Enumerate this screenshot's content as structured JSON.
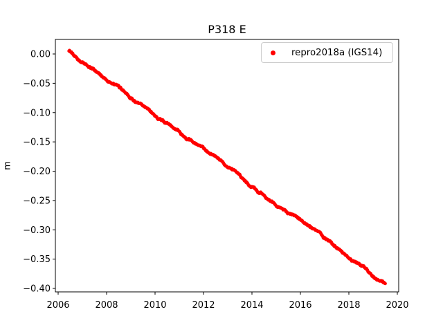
{
  "figure": {
    "background": "#ffffff",
    "text_color": "#000000"
  },
  "chart_data": {
    "type": "scatter",
    "title": "P318 E",
    "xlabel": "",
    "ylabel": "m",
    "grid": false,
    "xlim": [
      2005.886,
      2020.057
    ],
    "ylim": [
      -0.4059,
      0.0248
    ],
    "xticks": [
      2006,
      2008,
      2010,
      2012,
      2014,
      2016,
      2018,
      2020
    ],
    "xticklabels": [
      "2006",
      "2008",
      "2010",
      "2012",
      "2014",
      "2016",
      "2018",
      "2020"
    ],
    "yticks": [
      0.0,
      -0.05,
      -0.1,
      -0.15,
      -0.2,
      -0.25,
      -0.3,
      -0.35,
      -0.4
    ],
    "yticklabels": [
      "0.00",
      "−0.05",
      "−0.10",
      "−0.15",
      "−0.20",
      "−0.25",
      "−0.30",
      "−0.35",
      "−0.40"
    ],
    "legend": {
      "position": "upper right",
      "entries": [
        {
          "label": "repro2018a (IGS14)",
          "marker": "dot",
          "color": "#ff0000"
        }
      ]
    },
    "series": [
      {
        "name": "repro2018a (IGS14)",
        "color": "#ff0000",
        "marker": "dot",
        "x_range": [
          2006.45,
          2019.5
        ],
        "points_per_year": 52,
        "trend_m_per_yr": -0.03,
        "scatter_band_m": 0.008,
        "anchors": [
          [
            2006.45,
            0.005
          ],
          [
            2007.0,
            -0.012
          ],
          [
            2008.0,
            -0.042
          ],
          [
            2009.0,
            -0.072
          ],
          [
            2010.0,
            -0.103
          ],
          [
            2011.0,
            -0.133
          ],
          [
            2012.0,
            -0.164
          ],
          [
            2013.0,
            -0.194
          ],
          [
            2014.0,
            -0.224
          ],
          [
            2015.0,
            -0.255
          ],
          [
            2016.0,
            -0.285
          ],
          [
            2017.0,
            -0.315
          ],
          [
            2018.0,
            -0.346
          ],
          [
            2019.0,
            -0.376
          ],
          [
            2019.5,
            -0.391
          ]
        ]
      }
    ]
  }
}
